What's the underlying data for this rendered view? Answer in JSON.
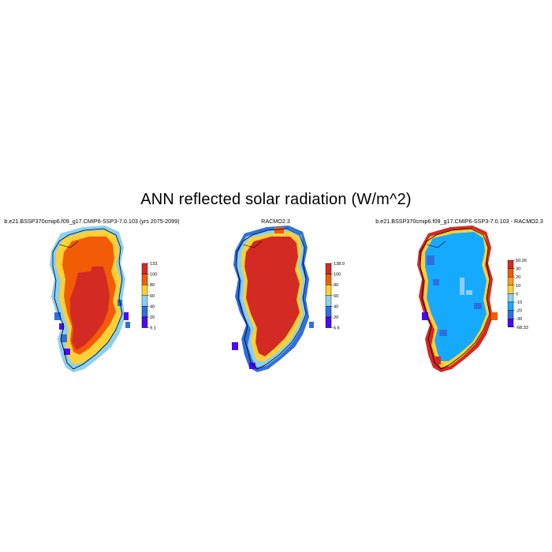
{
  "figure": {
    "title": "ANN reflected solar radiation (W/m^2)"
  },
  "panels": [
    {
      "title": "b.e21.BSSP370cmip6.f09_g17.CMIP6-SSP3-7.0.103 (yrs 2075-2099)",
      "colorbar": {
        "labels": [
          "133",
          "100",
          "80",
          "60",
          "40",
          "20",
          "9.1"
        ],
        "colors": [
          "#d42a24",
          "#f25c06",
          "#ffd033",
          "#8ccfee",
          "#2e6fe0",
          "#4a0af5"
        ]
      },
      "dominant_interior": "#d42a24",
      "dominant_upper": "#f25c06"
    },
    {
      "title": "RACMO2.3",
      "colorbar": {
        "labels": [
          "138.9",
          "100",
          "80",
          "60",
          "40",
          "20",
          "6.6"
        ],
        "colors": [
          "#d42a24",
          "#f25c06",
          "#ffd033",
          "#8ccfee",
          "#2e6fe0",
          "#4a0af5"
        ]
      },
      "dominant_interior": "#d42a24"
    },
    {
      "title": "b.e21.BSSP370cmip6.f09_g17.CMIP6-SSP3-7.0.103 - RACMO2.3",
      "colorbar": {
        "labels": [
          "50.26",
          "30",
          "20",
          "10",
          "0",
          "-10",
          "-20",
          "-30",
          "-68.33"
        ],
        "colors": [
          "#d42a24",
          "#f25c06",
          "#ff9a1e",
          "#ffd033",
          "#8ccfee",
          "#16aaff",
          "#2e6fe0",
          "#4a0af5"
        ]
      },
      "dominant_interior": "#16aaff"
    }
  ]
}
